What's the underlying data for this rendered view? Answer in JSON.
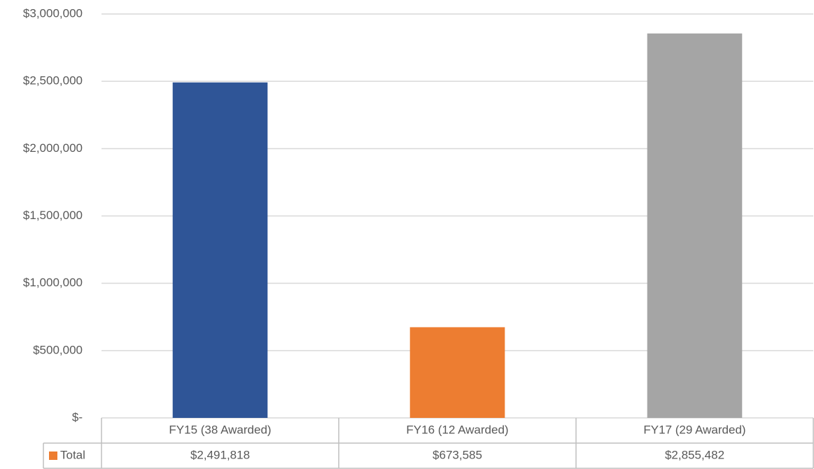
{
  "chart_data": {
    "type": "bar",
    "categories": [
      "FY15 (38 Awarded)",
      "FY16 (12 Awarded)",
      "FY17 (29 Awarded)"
    ],
    "series": [
      {
        "name": "Total",
        "color": "#ed7d31",
        "point_colors": [
          "#2f5597",
          "#ed7d31",
          "#a5a5a5"
        ],
        "values": [
          2491818,
          673585,
          2855482
        ],
        "value_labels": [
          "$2,491,818",
          "$673,585",
          "$2,855,482"
        ]
      }
    ],
    "ylim": [
      0,
      3000000
    ],
    "yticks": [
      {
        "value": 0,
        "label": "$-"
      },
      {
        "value": 500000,
        "label": "$500,000"
      },
      {
        "value": 1000000,
        "label": "$1,000,000"
      },
      {
        "value": 1500000,
        "label": "$1,500,000"
      },
      {
        "value": 2000000,
        "label": "$2,000,000"
      },
      {
        "value": 2500000,
        "label": "$2,500,000"
      },
      {
        "value": 3000000,
        "label": "$3,000,000"
      }
    ],
    "grid": true
  }
}
